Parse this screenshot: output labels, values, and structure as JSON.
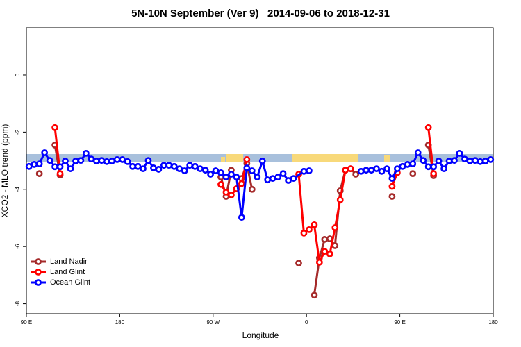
{
  "chart_data": {
    "type": "line",
    "title": "5N-10N September (Ver 9)   2014-09-06 to 2018-12-31",
    "x_label": "Longitude",
    "y_label": "XCO2 - MLO trend (ppm)",
    "xlim": [
      90,
      540
    ],
    "ylim": [
      -8.35,
      1.65
    ],
    "xticks": [
      {
        "value": 90,
        "label": "90 E"
      },
      180,
      {
        "value": 270,
        "label": "90 W"
      },
      {
        "value": 360,
        "label": "0"
      },
      {
        "value": 450,
        "label": "90 E"
      },
      {
        "value": 540,
        "label": "180"
      }
    ],
    "yticks": [
      0,
      -2,
      -4,
      -6,
      -8
    ],
    "legend": "bottom-left",
    "series": [
      {
        "name": "Land Nadir",
        "color": "#a52a2a",
        "x": [
          102.5,
          110,
          117.5,
          122.5,
          200,
          277.5,
          282.5,
          287.5,
          292.5,
          297.5,
          302.5,
          307.5,
          330,
          352.5,
          360,
          367.5,
          372.5,
          377.5,
          382.5,
          387.5,
          392.5,
          397.5,
          402.5,
          407.5,
          420,
          442.5,
          455,
          462.5,
          470,
          477.5,
          482.5
        ],
        "values": [
          -3.45,
          null,
          -2.45,
          -3.5,
          null,
          -3.57,
          -4.25,
          -3.33,
          null,
          -3.62,
          -3.1,
          -4.0,
          null,
          -6.58,
          null,
          -7.7,
          -6.4,
          -5.75,
          -5.73,
          -5.97,
          -4.05,
          -3.33,
          -3.28,
          -3.47,
          null,
          -4.25,
          null,
          -3.45,
          null,
          -2.45,
          -3.52
        ]
      },
      {
        "name": "Land Glint",
        "color": "#ff0000",
        "x": [
          117.5,
          122.5,
          200,
          277.5,
          282.5,
          287.5,
          292.5,
          297.5,
          302.5,
          327.5,
          352.5,
          357.5,
          362.5,
          367.5,
          372.5,
          377.5,
          382.5,
          387.5,
          392.5,
          397.5,
          402.5,
          420,
          442.5,
          447.5,
          460,
          477.5,
          482.5
        ],
        "values": [
          -1.84,
          -3.45,
          null,
          -3.83,
          -4.1,
          -4.2,
          -3.98,
          -3.8,
          -2.96,
          null,
          -3.47,
          -5.53,
          -5.41,
          -5.24,
          -6.55,
          -6.17,
          -6.26,
          -5.34,
          -4.37,
          -3.33,
          -3.28,
          null,
          -3.9,
          -3.42,
          null,
          -1.84,
          -3.45
        ]
      },
      {
        "name": "Ocean Glint",
        "color": "#0000ff",
        "x": [
          92.5,
          97.5,
          102.5,
          107.5,
          112.5,
          117.5,
          122.5,
          127.5,
          132.5,
          137.5,
          142.5,
          147.5,
          152.5,
          157.5,
          162.5,
          167.5,
          172.5,
          177.5,
          182.5,
          187.5,
          192.5,
          197.5,
          202.5,
          207.5,
          212.5,
          217.5,
          222.5,
          227.5,
          232.5,
          237.5,
          242.5,
          247.5,
          252.5,
          257.5,
          262.5,
          267.5,
          272.5,
          277.5,
          282.5,
          287.5,
          292.5,
          297.5,
          302.5,
          307.5,
          312.5,
          317.5,
          322.5,
          327.5,
          332.5,
          337.5,
          342.5,
          347.5,
          357.5,
          362.5,
          387.5,
          412.5,
          417.5,
          422.5,
          427.5,
          432.5,
          437.5,
          442.5,
          447.5,
          452.5,
          457.5,
          462.5,
          467.5,
          472.5,
          477.5,
          482.5,
          487.5,
          492.5,
          497.5,
          502.5,
          507.5,
          512.5,
          517.5,
          522.5,
          527.5,
          532.5,
          537.5
        ],
        "values": [
          -3.2,
          -3.13,
          -3.11,
          -2.72,
          -2.99,
          -3.21,
          -3.21,
          -3.01,
          -3.28,
          -3.01,
          -2.99,
          -2.74,
          -2.94,
          -3.01,
          -2.99,
          -3.03,
          -3.01,
          -2.96,
          -2.96,
          -3.03,
          -3.2,
          -3.2,
          -3.28,
          -2.99,
          -3.25,
          -3.3,
          -3.16,
          -3.16,
          -3.2,
          -3.28,
          -3.35,
          -3.16,
          -3.2,
          -3.28,
          -3.33,
          -3.47,
          -3.35,
          -3.42,
          -3.57,
          -3.47,
          -3.57,
          -4.98,
          -3.25,
          -3.35,
          -3.57,
          -3.01,
          -3.67,
          -3.62,
          -3.57,
          -3.45,
          -3.69,
          -3.62,
          -3.37,
          -3.35,
          null,
          -3.37,
          -3.33,
          -3.33,
          -3.28,
          -3.37,
          -3.28,
          -3.62,
          -3.28,
          -3.2,
          -3.13,
          -3.11,
          -2.72,
          -2.99,
          -3.21,
          -3.21,
          -3.01,
          -3.28,
          -3.01,
          -2.99,
          -2.74,
          -2.94,
          -3.01,
          -2.99,
          -3.03,
          -3.01,
          -2.96
        ]
      }
    ]
  }
}
